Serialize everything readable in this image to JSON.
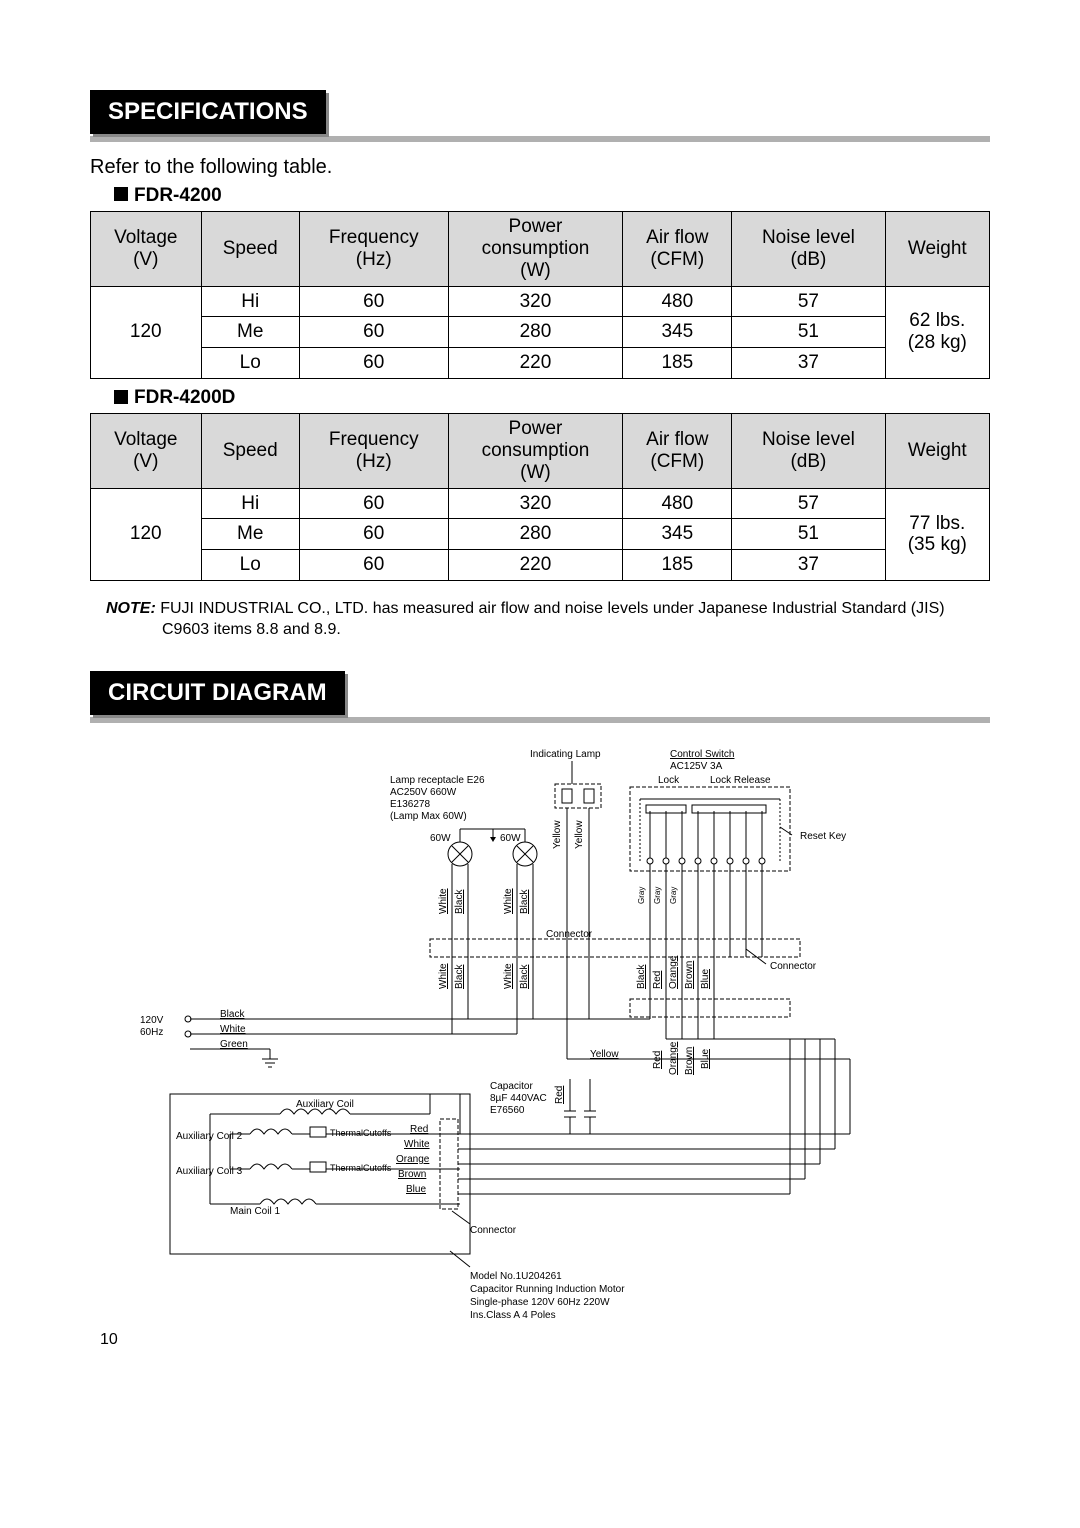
{
  "sections": {
    "specifications": {
      "title": "SPECIFICATIONS",
      "intro": "Refer to the following table."
    },
    "circuit_diagram": {
      "title": "CIRCUIT DIAGRAM"
    }
  },
  "spec_columns": [
    "Voltage\n(V)",
    "Speed",
    "Frequency\n(Hz)",
    "Power\nconsumption\n(W)",
    "Air flow\n(CFM)",
    "Noise level\n(dB)",
    "Weight"
  ],
  "models": {
    "m1": {
      "label": "FDR-4200",
      "voltage": "120",
      "weight": "62 lbs.\n(28 kg)",
      "rows": [
        {
          "speed": "Hi",
          "freq": "60",
          "power": "320",
          "airflow": "480",
          "noise": "57"
        },
        {
          "speed": "Me",
          "freq": "60",
          "power": "280",
          "airflow": "345",
          "noise": "51"
        },
        {
          "speed": "Lo",
          "freq": "60",
          "power": "220",
          "airflow": "185",
          "noise": "37"
        }
      ]
    },
    "m2": {
      "label": "FDR-4200D",
      "voltage": "120",
      "weight": "77 lbs.\n(35 kg)",
      "rows": [
        {
          "speed": "Hi",
          "freq": "60",
          "power": "320",
          "airflow": "480",
          "noise": "57"
        },
        {
          "speed": "Me",
          "freq": "60",
          "power": "280",
          "airflow": "345",
          "noise": "51"
        },
        {
          "speed": "Lo",
          "freq": "60",
          "power": "220",
          "airflow": "185",
          "noise": "37"
        }
      ]
    }
  },
  "note": {
    "label": "NOTE:",
    "text": " FUJI INDUSTRIAL CO., LTD. has measured air flow and noise levels under Japanese Industrial Standard (JIS) C9603 items 8.8 and 8.9."
  },
  "diagram": {
    "labels": {
      "indicating_lamp": "Indicating Lamp",
      "control_switch": "Control Switch",
      "control_switch_spec": "AC125V 3A",
      "lock": "Lock",
      "lock_release": "Lock Release",
      "reset_key": "Reset Key",
      "lamp_receptacle": "Lamp receptacle E26",
      "lamp_spec1": "AC250V 660W",
      "lamp_spec2": "E136278",
      "lamp_spec3": "(Lamp Max 60W)",
      "lamp_w": "60W",
      "connector": "Connector",
      "capacitor": "Capacitor",
      "capacitor_spec1": "8µF 440VAC",
      "capacitor_spec2": "E76560",
      "aux_coil": "Auxiliary Coil",
      "aux_coil2": "Auxiliary Coil 2",
      "aux_coil3": "Auxiliary Coil 3",
      "main_coil1": "Main Coil 1",
      "thermal_cutoffs": "Thermal\nCutoffs",
      "supply_v": "120V",
      "supply_hz": "60Hz",
      "motor_model": "Model No.1U204261",
      "motor_type": "Capacitor Running Induction Motor",
      "motor_phase": "Single-phase 120V 60Hz 220W",
      "motor_ins": "Ins.Class A 4 Poles",
      "wires": {
        "black": "Black",
        "white": "White",
        "green": "Green",
        "yellow": "Yellow",
        "red": "Red",
        "orange": "Orange",
        "brown": "Brown",
        "blue": "Blue",
        "gray": "Gray"
      }
    },
    "style": {
      "font_size": 10,
      "line_color": "#000000",
      "dash": "4 2"
    }
  },
  "colors": {
    "section_bg": "#000000",
    "section_shadow": "#888888",
    "underline": "#b0b0b0",
    "table_header_bg": "#d9d9d9",
    "text": "#000000"
  },
  "page_number": "10"
}
